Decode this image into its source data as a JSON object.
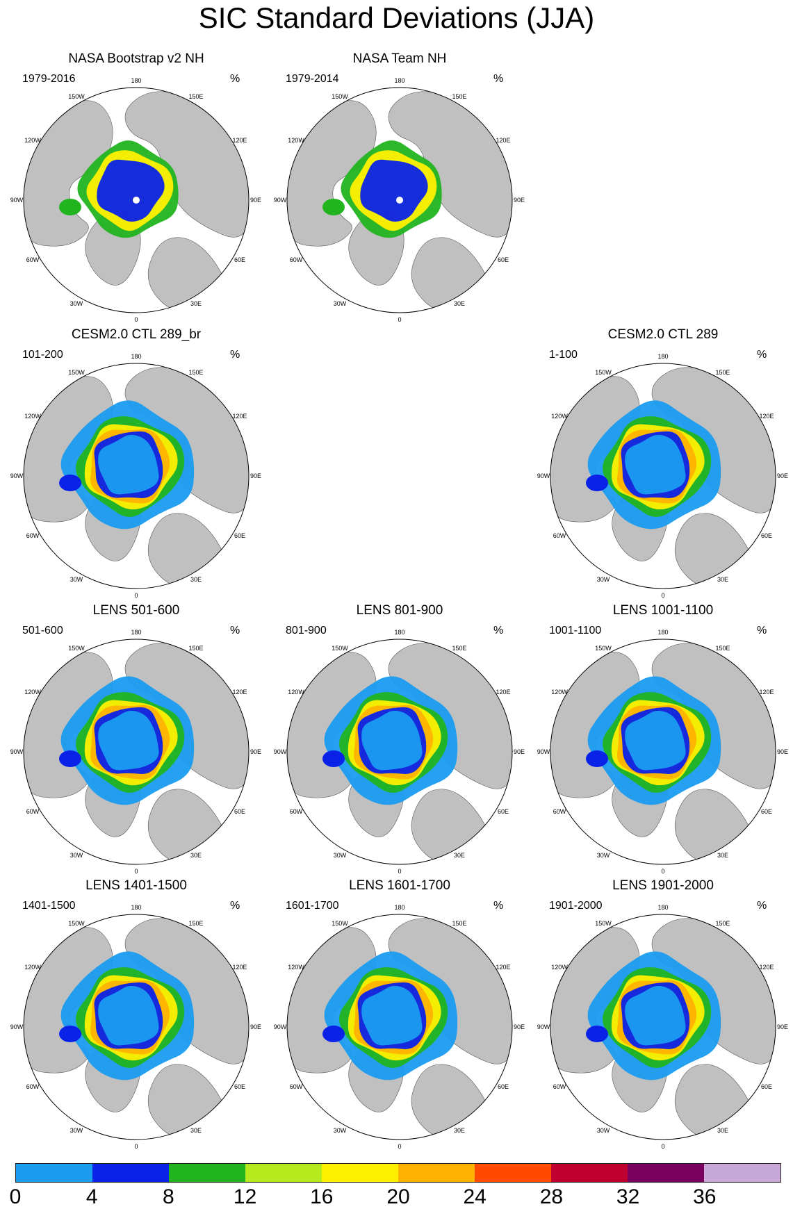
{
  "title": "SIC Standard Deviations (JJA)",
  "unit": "%",
  "lon_labels": [
    "180",
    "150E",
    "120E",
    "90E",
    "60E",
    "30E",
    "0",
    "30W",
    "60W",
    "90W",
    "120W",
    "150W"
  ],
  "colors": {
    "land": "#c0c0c0",
    "ocean": "#ffffff",
    "ice_low": "#1a9cf0",
    "ice_mid": "#0a22e8",
    "ice_green": "#21b41f",
    "ice_yellow": "#fff000",
    "ice_orange": "#ffb300",
    "ice_red": "#ff3c00"
  },
  "panels": [
    {
      "title": "NASA Bootstrap v2 NH",
      "subtitle": "1979-2016",
      "unit": "%",
      "variant": "obs"
    },
    {
      "title": "NASA Team NH",
      "subtitle": "1979-2014",
      "unit": "%",
      "variant": "obs"
    },
    {
      "title": "CESM2.0 CTL 289_br",
      "subtitle": "101-200",
      "unit": "%",
      "variant": "model"
    },
    {
      "title": "CESM2.0 CTL 289",
      "subtitle": "1-100",
      "unit": "%",
      "variant": "model"
    },
    {
      "title": "LENS 501-600",
      "subtitle": "501-600",
      "unit": "%",
      "variant": "lens"
    },
    {
      "title": "LENS 801-900",
      "subtitle": "801-900",
      "unit": "%",
      "variant": "lens"
    },
    {
      "title": "LENS 1001-1100",
      "subtitle": "1001-1100",
      "unit": "%",
      "variant": "lens"
    },
    {
      "title": "LENS 1401-1500",
      "subtitle": "1401-1500",
      "unit": "%",
      "variant": "lens"
    },
    {
      "title": "LENS 1601-1700",
      "subtitle": "1601-1700",
      "unit": "%",
      "variant": "lens"
    },
    {
      "title": "LENS 1901-2000",
      "subtitle": "1901-2000",
      "unit": "%",
      "variant": "lens"
    }
  ],
  "colorbar": {
    "colors": [
      "#1a9cf0",
      "#0a22e8",
      "#21b41f",
      "#b4ea1e",
      "#fff000",
      "#ffb300",
      "#ff4a00",
      "#c0002e",
      "#7a0060",
      "#c8a8d8"
    ],
    "labels": [
      "0",
      "4",
      "8",
      "12",
      "16",
      "20",
      "24",
      "28",
      "32",
      "36"
    ]
  }
}
